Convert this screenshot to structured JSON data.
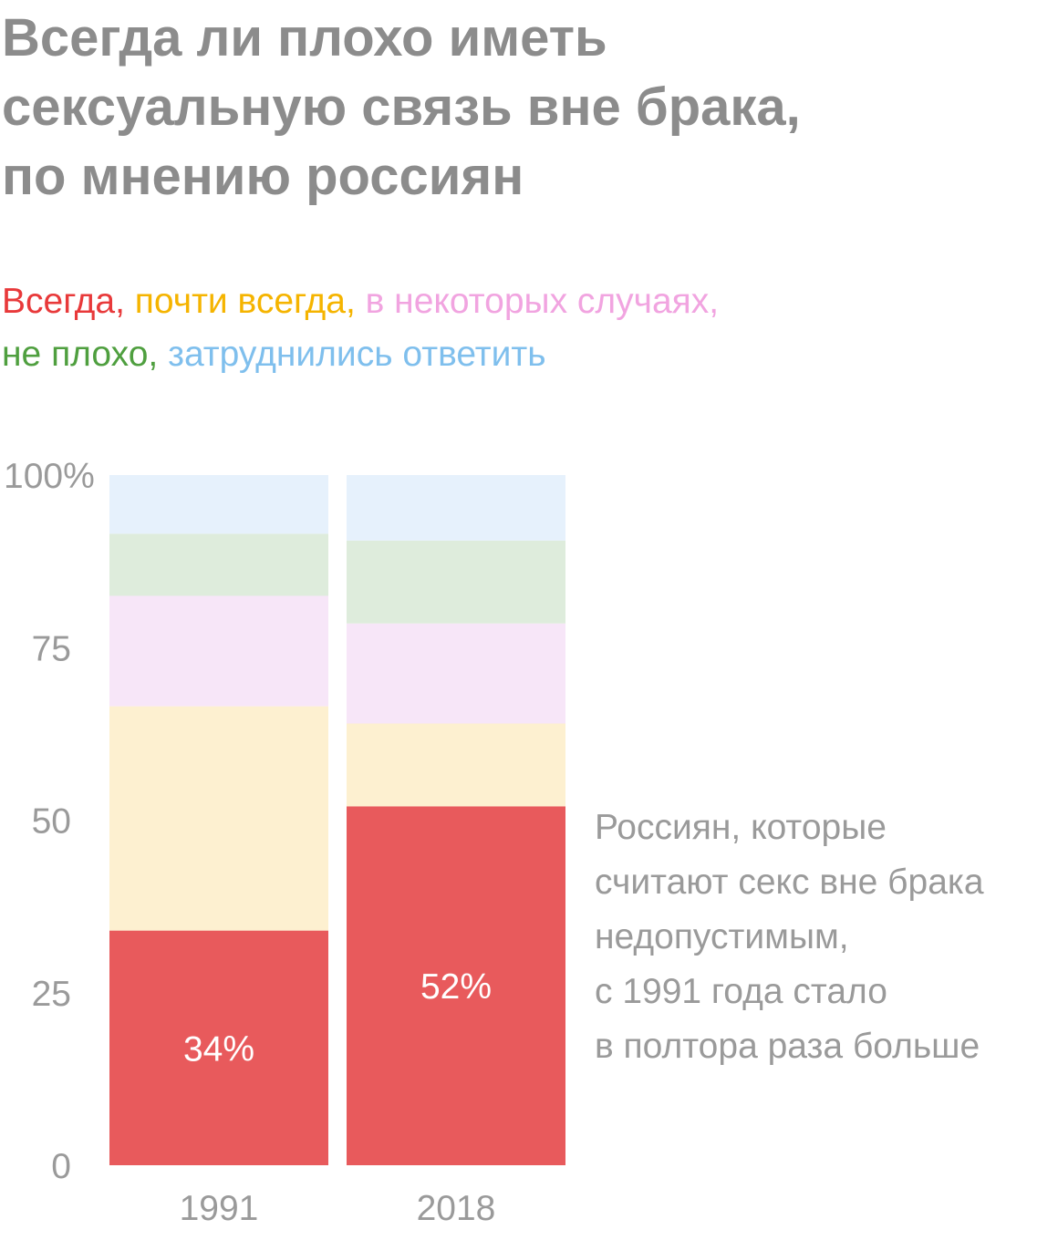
{
  "title_lines": [
    "Всегда ли плохо иметь",
    "сексуальную связь вне брака,",
    "по мнению россиян"
  ],
  "legend": [
    {
      "name": "Всегда",
      "sep": ", ",
      "color": "#e8393a"
    },
    {
      "name": "почти всегда",
      "sep": ", ",
      "color": "#f5b400"
    },
    {
      "name": "в некоторых случаях",
      "sep": ",",
      "color": "#f1a4e0"
    },
    {
      "name": "не плохо",
      "sep": ", ",
      "color": "#4f9f3f"
    },
    {
      "name": "затруднились ответить",
      "sep": "",
      "color": "#7fbfed"
    }
  ],
  "annotation": [
    "Россиян, которые",
    "считают секс вне брака",
    "недопустимым,",
    "с 1991 года стало",
    "в полтора раза больше"
  ],
  "chart_data": {
    "type": "bar",
    "stacked": true,
    "categories": [
      "1991",
      "2018"
    ],
    "ylim": [
      0,
      100
    ],
    "yticks": [
      0,
      25,
      50,
      75,
      100
    ],
    "ytick_labels": [
      "0",
      "25",
      "50",
      "75",
      "100%"
    ],
    "series": [
      {
        "name": "Всегда",
        "values": [
          34,
          52
        ],
        "color": "#e85a5c",
        "labels": [
          "34%",
          "52%"
        ]
      },
      {
        "name": "почти всегда",
        "values": [
          32.5,
          12
        ],
        "color": "#fdf0d0"
      },
      {
        "name": "в некоторых случаях",
        "values": [
          16,
          14.5
        ],
        "color": "#f7e6f8"
      },
      {
        "name": "не плохо",
        "values": [
          9,
          12
        ],
        "color": "#deecdc"
      },
      {
        "name": "затруднились ответить",
        "values": [
          8.5,
          9.5
        ],
        "color": "#e6f1fc"
      }
    ]
  }
}
